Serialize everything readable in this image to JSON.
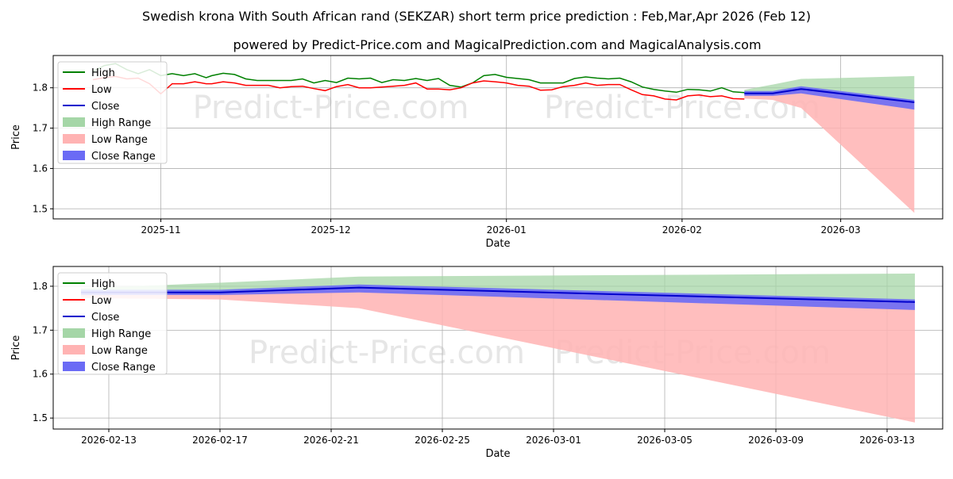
{
  "title": "Swedish krona With South African rand (SEKZAR) short term price prediction : Feb,Mar,Apr 2026 (Feb 12)",
  "subtitle": "powered by Predict-Price.com and MagicalPrediction.com and MagicalAnalysis.com",
  "watermark": "Predict-Price.com",
  "colors": {
    "high": "#008000",
    "low": "#ff0000",
    "close": "#0000cc",
    "high_range": "#a5d6a7",
    "low_range": "#ffb3b3",
    "close_range": "#6b6bf5",
    "grid": "#b0b0b0"
  },
  "legend": [
    "High",
    "Low",
    "Close",
    "High Range",
    "Low Range",
    "Close Range"
  ],
  "chart_data": [
    {
      "type": "line",
      "name": "overview",
      "xlabel": "Date",
      "ylabel": "Price",
      "x_ticks": [
        "2025-11",
        "2025-12",
        "2026-01",
        "2026-02",
        "2026-03"
      ],
      "y_ticks": [
        1.5,
        1.6,
        1.7,
        1.8
      ],
      "ylim": [
        1.475,
        1.88
      ],
      "grid": true,
      "legend_position": "upper-left",
      "history_high": [
        [
          "2025-10-20",
          1.84
        ],
        [
          "2025-10-22",
          1.855
        ],
        [
          "2025-10-24",
          1.86
        ],
        [
          "2025-10-26",
          1.845
        ],
        [
          "2025-10-28",
          1.835
        ],
        [
          "2025-10-30",
          1.845
        ],
        [
          "2025-11-01",
          1.83
        ],
        [
          "2025-11-03",
          1.835
        ],
        [
          "2025-11-05",
          1.83
        ],
        [
          "2025-11-07",
          1.835
        ],
        [
          "2025-11-09",
          1.825
        ],
        [
          "2025-11-10",
          1.83
        ],
        [
          "2025-11-12",
          1.836
        ],
        [
          "2025-11-14",
          1.833
        ],
        [
          "2025-11-16",
          1.822
        ],
        [
          "2025-11-18",
          1.818
        ],
        [
          "2025-11-20",
          1.818
        ],
        [
          "2025-11-22",
          1.818
        ],
        [
          "2025-11-24",
          1.818
        ],
        [
          "2025-11-26",
          1.822
        ],
        [
          "2025-11-28",
          1.812
        ],
        [
          "2025-11-30",
          1.818
        ],
        [
          "2025-12-02",
          1.813
        ],
        [
          "2025-12-04",
          1.824
        ],
        [
          "2025-12-06",
          1.822
        ],
        [
          "2025-12-08",
          1.824
        ],
        [
          "2025-12-10",
          1.813
        ],
        [
          "2025-12-12",
          1.82
        ],
        [
          "2025-12-14",
          1.818
        ],
        [
          "2025-12-16",
          1.823
        ],
        [
          "2025-12-18",
          1.818
        ],
        [
          "2025-12-20",
          1.823
        ],
        [
          "2025-12-22",
          1.806
        ],
        [
          "2025-12-24",
          1.802
        ],
        [
          "2025-12-26",
          1.812
        ],
        [
          "2025-12-28",
          1.83
        ],
        [
          "2025-12-30",
          1.833
        ],
        [
          "2026-01-01",
          1.826
        ],
        [
          "2026-01-03",
          1.823
        ],
        [
          "2026-01-05",
          1.82
        ],
        [
          "2026-01-07",
          1.812
        ],
        [
          "2026-01-09",
          1.812
        ],
        [
          "2026-01-11",
          1.812
        ],
        [
          "2026-01-13",
          1.823
        ],
        [
          "2026-01-15",
          1.827
        ],
        [
          "2026-01-17",
          1.824
        ],
        [
          "2026-01-19",
          1.822
        ],
        [
          "2026-01-21",
          1.824
        ],
        [
          "2026-01-23",
          1.815
        ],
        [
          "2026-01-25",
          1.802
        ],
        [
          "2026-01-27",
          1.796
        ],
        [
          "2026-01-29",
          1.792
        ],
        [
          "2026-01-31",
          1.789
        ],
        [
          "2026-02-02",
          1.796
        ],
        [
          "2026-02-04",
          1.795
        ],
        [
          "2026-02-06",
          1.792
        ],
        [
          "2026-02-08",
          1.8
        ],
        [
          "2026-02-10",
          1.79
        ],
        [
          "2026-02-12",
          1.788
        ]
      ],
      "history_low": [
        [
          "2025-10-20",
          1.82
        ],
        [
          "2025-10-22",
          1.825
        ],
        [
          "2025-10-24",
          1.828
        ],
        [
          "2025-10-26",
          1.822
        ],
        [
          "2025-10-28",
          1.824
        ],
        [
          "2025-10-30",
          1.81
        ],
        [
          "2025-11-01",
          1.785
        ],
        [
          "2025-11-03",
          1.81
        ],
        [
          "2025-11-05",
          1.81
        ],
        [
          "2025-11-07",
          1.815
        ],
        [
          "2025-11-09",
          1.81
        ],
        [
          "2025-11-10",
          1.81
        ],
        [
          "2025-11-12",
          1.815
        ],
        [
          "2025-11-14",
          1.812
        ],
        [
          "2025-11-16",
          1.806
        ],
        [
          "2025-11-18",
          1.806
        ],
        [
          "2025-11-20",
          1.806
        ],
        [
          "2025-11-22",
          1.8
        ],
        [
          "2025-11-24",
          1.803
        ],
        [
          "2025-11-26",
          1.804
        ],
        [
          "2025-11-28",
          1.798
        ],
        [
          "2025-11-30",
          1.793
        ],
        [
          "2025-12-02",
          1.803
        ],
        [
          "2025-12-04",
          1.808
        ],
        [
          "2025-12-06",
          1.8
        ],
        [
          "2025-12-08",
          1.8
        ],
        [
          "2025-12-10",
          1.802
        ],
        [
          "2025-12-12",
          1.804
        ],
        [
          "2025-12-14",
          1.806
        ],
        [
          "2025-12-16",
          1.812
        ],
        [
          "2025-12-18",
          1.797
        ],
        [
          "2025-12-20",
          1.797
        ],
        [
          "2025-12-22",
          1.795
        ],
        [
          "2025-12-24",
          1.8
        ],
        [
          "2025-12-26",
          1.812
        ],
        [
          "2025-12-28",
          1.817
        ],
        [
          "2025-12-30",
          1.815
        ],
        [
          "2026-01-01",
          1.812
        ],
        [
          "2026-01-03",
          1.806
        ],
        [
          "2026-01-05",
          1.804
        ],
        [
          "2026-01-07",
          1.794
        ],
        [
          "2026-01-09",
          1.795
        ],
        [
          "2026-01-11",
          1.803
        ],
        [
          "2026-01-13",
          1.806
        ],
        [
          "2026-01-15",
          1.812
        ],
        [
          "2026-01-17",
          1.806
        ],
        [
          "2026-01-19",
          1.808
        ],
        [
          "2026-01-21",
          1.808
        ],
        [
          "2026-01-23",
          1.795
        ],
        [
          "2026-01-25",
          1.783
        ],
        [
          "2026-01-27",
          1.78
        ],
        [
          "2026-01-29",
          1.772
        ],
        [
          "2026-01-31",
          1.77
        ],
        [
          "2026-02-02",
          1.78
        ],
        [
          "2026-02-04",
          1.782
        ],
        [
          "2026-02-06",
          1.778
        ],
        [
          "2026-02-08",
          1.78
        ],
        [
          "2026-02-10",
          1.773
        ],
        [
          "2026-02-12",
          1.772
        ]
      ],
      "history_range": [
        "2025-10-19",
        "2026-02-12"
      ],
      "forecast": [
        {
          "date": "2026-02-12",
          "high": 1.795,
          "low": 1.773,
          "close_hi": 1.792,
          "close_lo": 1.78,
          "close": 1.786
        },
        {
          "date": "2026-02-17",
          "high": 1.808,
          "low": 1.77,
          "close_hi": 1.792,
          "close_lo": 1.78,
          "close": 1.786
        },
        {
          "date": "2026-02-22",
          "high": 1.822,
          "low": 1.75,
          "close_hi": 1.804,
          "close_lo": 1.786,
          "close": 1.797
        },
        {
          "date": "2026-03-14",
          "high": 1.829,
          "low": 1.49,
          "close_hi": 1.77,
          "close_lo": 1.746,
          "close": 1.764
        }
      ]
    },
    {
      "type": "line",
      "name": "forecast-detail",
      "xlabel": "Date",
      "ylabel": "Price",
      "x_ticks": [
        "2026-02-13",
        "2026-02-17",
        "2026-02-21",
        "2026-02-25",
        "2026-03-01",
        "2026-03-05",
        "2026-03-09",
        "2026-03-13"
      ],
      "y_ticks": [
        1.5,
        1.6,
        1.7,
        1.8
      ],
      "ylim": [
        1.475,
        1.845
      ],
      "grid": true,
      "legend_position": "upper-left"
    }
  ]
}
